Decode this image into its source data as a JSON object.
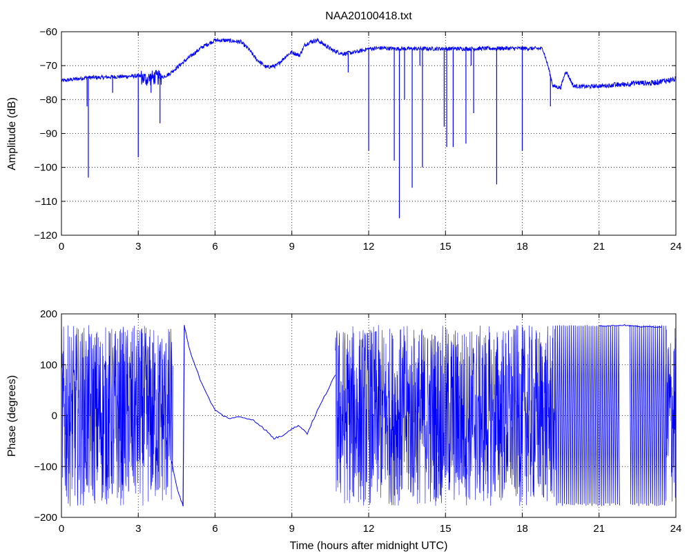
{
  "title": "NAA20100418.txt",
  "colors": {
    "line": "#0000ff",
    "grid": "#000000",
    "frame": "#000000"
  },
  "chart_data": [
    {
      "type": "line",
      "title": "NAA20100418.txt",
      "xlabel": "",
      "ylabel": "Amplitude (dB)",
      "xlim": [
        0,
        24
      ],
      "ylim": [
        -120,
        -60
      ],
      "x_ticks": [
        0,
        3,
        6,
        9,
        12,
        15,
        18,
        21,
        24
      ],
      "y_ticks": [
        -120,
        -110,
        -100,
        -90,
        -80,
        -70,
        -60
      ],
      "x_tick_labels": [
        "0",
        "3",
        "6",
        "9",
        "12",
        "15",
        "18",
        "21",
        "24"
      ],
      "y_tick_labels": [
        "−120",
        "−110",
        "−100",
        "−90",
        "−80",
        "−70",
        "−60"
      ],
      "grid": true,
      "series": [
        {
          "x": [
            0,
            0.5,
            1.0,
            1.5,
            2.0,
            2.5,
            3.0,
            3.3,
            3.6,
            3.9,
            4.2,
            4.6,
            5.0,
            5.5,
            6.0,
            6.5,
            7.0,
            7.3,
            7.6,
            8.0,
            8.4,
            8.8,
            9.0,
            9.3,
            9.5,
            9.7,
            10.0,
            10.3,
            10.6,
            11.0,
            11.5,
            12.0,
            12.5,
            13.0,
            14.0,
            15.0,
            16.0,
            17.0,
            18.0,
            18.8,
            19.0,
            19.2,
            19.5,
            19.7,
            20.0,
            20.5,
            21.0,
            21.5,
            22.0,
            22.5,
            23.0,
            23.5,
            24.0
          ],
          "values": [
            -74.5,
            -74.0,
            -73.5,
            -73.5,
            -73.3,
            -73.2,
            -73.0,
            -74.0,
            -73.5,
            -73.5,
            -72.5,
            -70.0,
            -67.5,
            -64.5,
            -62.5,
            -62.6,
            -63.0,
            -65.0,
            -68.0,
            -70.5,
            -70.0,
            -67.0,
            -66.0,
            -67.0,
            -64.0,
            -63.0,
            -62.5,
            -64.0,
            -65.5,
            -66.5,
            -66.0,
            -65.0,
            -64.8,
            -65.0,
            -65.0,
            -65.0,
            -65.0,
            -64.9,
            -64.9,
            -65.0,
            -70.0,
            -76.0,
            -76.5,
            -71.5,
            -76.0,
            -76.2,
            -76.0,
            -75.8,
            -75.5,
            -75.0,
            -75.2,
            -74.5,
            -74.0
          ],
          "spikes": [
            [
              1.05,
              -103
            ],
            [
              1.0,
              -82
            ],
            [
              2.0,
              -78
            ],
            [
              3.0,
              -97
            ],
            [
              3.5,
              -78
            ],
            [
              3.85,
              -87
            ],
            [
              11.2,
              -72
            ],
            [
              12.0,
              -95
            ],
            [
              13.0,
              -98
            ],
            [
              13.2,
              -115
            ],
            [
              13.4,
              -80
            ],
            [
              13.7,
              -106
            ],
            [
              14.1,
              -100
            ],
            [
              14.0,
              -70
            ],
            [
              14.95,
              -88
            ],
            [
              15.05,
              -94
            ],
            [
              15.3,
              -94
            ],
            [
              15.8,
              -93
            ],
            [
              16.1,
              -84
            ],
            [
              16.0,
              -70
            ],
            [
              17.0,
              -105
            ],
            [
              18.0,
              -95
            ],
            [
              19.1,
              -82
            ]
          ]
        }
      ]
    },
    {
      "type": "line",
      "title": "",
      "xlabel": "Time (hours after midnight UTC)",
      "ylabel": "Phase (degrees)",
      "xlim": [
        0,
        24
      ],
      "ylim": [
        -200,
        200
      ],
      "x_ticks": [
        0,
        3,
        6,
        9,
        12,
        15,
        18,
        21,
        24
      ],
      "y_ticks": [
        -200,
        -100,
        0,
        100,
        200
      ],
      "x_tick_labels": [
        "0",
        "3",
        "6",
        "9",
        "12",
        "15",
        "18",
        "21",
        "24"
      ],
      "y_tick_labels": [
        "−200",
        "−100",
        "0",
        "100",
        "200"
      ],
      "grid": true,
      "series": [
        {
          "wrap_regions": [
            [
              0,
              4.35
            ],
            [
              10.7,
              19.3
            ],
            [
              23.6,
              24.0
            ]
          ],
          "sparse_wrap_regions": [
            [
              19.3,
              21.8
            ],
            [
              22.2,
              23.6
            ]
          ],
          "x": [
            4.3,
            4.5,
            4.75,
            4.8,
            5.0,
            5.5,
            6.0,
            6.5,
            7.0,
            7.5,
            8.0,
            8.3,
            8.6,
            9.0,
            9.3,
            9.6,
            10.0,
            10.4,
            10.7,
            21.0,
            22.0,
            22.5,
            23.5
          ],
          "values": [
            -90,
            -140,
            -178,
            178,
            130,
            60,
            10,
            -5,
            -3,
            -8,
            -30,
            -45,
            -40,
            -25,
            -20,
            -35,
            10,
            50,
            80,
            176,
            178,
            175,
            174
          ]
        }
      ]
    }
  ]
}
